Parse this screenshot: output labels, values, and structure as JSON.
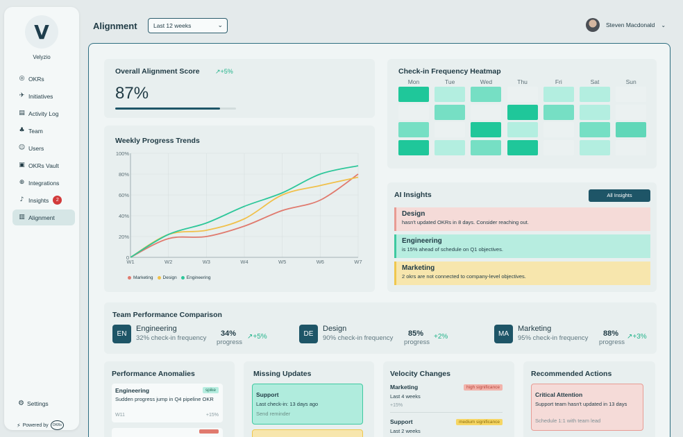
{
  "brand": {
    "name": "Velyzio",
    "logo_glyph": "V"
  },
  "sidebar": {
    "items": [
      {
        "label": "OKRs",
        "icon": "target-icon",
        "glyph": "◎"
      },
      {
        "label": "Initiatives",
        "icon": "rocket-icon",
        "glyph": "✈"
      },
      {
        "label": "Activity Log",
        "icon": "calendar-icon",
        "glyph": "▤"
      },
      {
        "label": "Team",
        "icon": "team-icon",
        "glyph": "♣"
      },
      {
        "label": "Users",
        "icon": "users-icon",
        "glyph": "☺"
      },
      {
        "label": "OKRs Vault",
        "icon": "vault-icon",
        "glyph": "▣"
      },
      {
        "label": "Integrations",
        "icon": "globe-icon",
        "glyph": "⊕"
      },
      {
        "label": "Insights",
        "icon": "bell-icon",
        "glyph": "♪",
        "badge": "2"
      },
      {
        "label": "Alignment",
        "icon": "chart-icon",
        "glyph": "▥",
        "active": true
      }
    ],
    "settings_label": "Settings",
    "settings_glyph": "⚙",
    "powered_label": "Powered by",
    "powered_logo": "OKRs",
    "powered_glyph": "⚡"
  },
  "header": {
    "title": "Alignment",
    "period": "Last 12 weeks",
    "period_chevron": "⌄",
    "user_name": "Steven Macdonald",
    "user_chevron": "⌄"
  },
  "score": {
    "title": "Overall Alignment Score",
    "trend": "↗+5%",
    "value": "87%",
    "progress": 0.87
  },
  "trends": {
    "title": "Weekly Progress Trends",
    "legend": [
      "Marketing",
      "Design",
      "Engineering"
    ]
  },
  "chart_data": {
    "type": "line",
    "title": "Weekly Progress Trends",
    "x": [
      "W1",
      "W2",
      "W3",
      "W4",
      "W5",
      "W6",
      "W7"
    ],
    "ylim": [
      0,
      100
    ],
    "yticks": [
      "0",
      "20%",
      "40%",
      "60%",
      "80%",
      "100%"
    ],
    "series": [
      {
        "name": "Marketing",
        "color": "#e07a6e",
        "values": [
          0,
          18,
          20,
          30,
          45,
          55,
          80
        ]
      },
      {
        "name": "Design",
        "color": "#f0c04a",
        "values": [
          0,
          22,
          26,
          37,
          60,
          69,
          77
        ]
      },
      {
        "name": "Engineering",
        "color": "#2ec79a",
        "values": [
          0,
          22,
          33,
          49,
          62,
          80,
          88
        ]
      }
    ]
  },
  "heatmap": {
    "title": "Check-in Frequency Heatmap",
    "days": [
      "Mon",
      "Tue",
      "Wed",
      "Thu",
      "Fri",
      "Sat",
      "Sun"
    ],
    "rows": [
      [
        4,
        1,
        2,
        0,
        1,
        1,
        0
      ],
      [
        0,
        2,
        0,
        4,
        2,
        1,
        0
      ],
      [
        2,
        0,
        4,
        1,
        0,
        2,
        3
      ],
      [
        4,
        1,
        2,
        4,
        0,
        1,
        0
      ]
    ]
  },
  "insights": {
    "title": "AI Insights",
    "button": "All Insights",
    "items": [
      {
        "team": "Design",
        "text": "hasn't updated OKRs in 8 days. Consider reaching out.",
        "tone": "red"
      },
      {
        "team": "Engineering",
        "text": "is 15% ahead of schedule on Q1 objectives.",
        "tone": "green"
      },
      {
        "team": "Marketing",
        "text": "2 okrs are not connected to company-level objectives.",
        "tone": "yellow"
      }
    ]
  },
  "teams": {
    "title": "Team Performance Comparison",
    "items": [
      {
        "abbr": "EN",
        "name": "Engineering",
        "freq": "32% check-in frequency",
        "pct": "34%",
        "prog": "progress",
        "trend": "↗+5%"
      },
      {
        "abbr": "DE",
        "name": "Design",
        "freq": "90% check-in frequency",
        "pct": "85%",
        "prog": "progress",
        "trend": "+2%"
      },
      {
        "abbr": "MA",
        "name": "Marketing",
        "freq": "95% check-in frequency",
        "pct": "88%",
        "prog": "progress",
        "trend": "↗+3%"
      }
    ]
  },
  "anomalies": {
    "title": "Performance Anomalies",
    "item": {
      "team": "Engineering",
      "tag": "spike",
      "text": "Sudden progress jump in Q4 pipeline OKR",
      "week": "W11",
      "delta": "+15%"
    }
  },
  "missing": {
    "title": "Missing Updates",
    "item": {
      "team": "Support",
      "text": "Last check-in: 13 days ago",
      "action": "Send reminder"
    }
  },
  "velocity": {
    "title": "Velocity Changes",
    "items": [
      {
        "team": "Marketing",
        "tag": "high significance",
        "period": "Last 4 weeks",
        "delta": "+15%"
      },
      {
        "team": "Support",
        "tag": "medium significance",
        "period": "Last 2 weeks"
      }
    ]
  },
  "actions": {
    "title": "Recommended Actions",
    "item": {
      "title": "Critical Attention",
      "text": "Support team hasn't updated in 13 days",
      "action": "Schedule 1:1 with team lead"
    }
  }
}
